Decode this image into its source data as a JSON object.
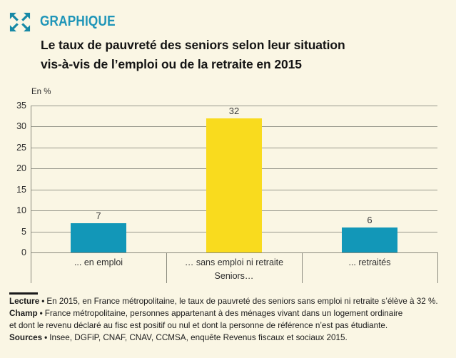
{
  "header": {
    "kicker": "GRAPHIQUE",
    "title_line1": "Le taux de pauvreté des seniors selon leur situation",
    "title_line2": "vis-à-vis de l’emploi ou de la retraite en 2015",
    "icon": "expand-arrows-icon"
  },
  "chart_data": {
    "type": "bar",
    "title": "Le taux de pauvreté des seniors selon leur situation vis-à-vis de l’emploi ou de la retraite en 2015",
    "unit_label": "En %",
    "categories": [
      "... en emploi",
      "… sans emploi ni retraite",
      "... retraités"
    ],
    "values": [
      7,
      32,
      6
    ],
    "bar_colors": [
      "#1297B8",
      "#F9DB1E",
      "#1297B8"
    ],
    "x_axis_group_label": "Seniors…",
    "xlabel": "",
    "ylabel": "En %",
    "ylim": [
      0,
      35
    ],
    "yticks": [
      0,
      5,
      10,
      15,
      20,
      25,
      30,
      35
    ],
    "grid": true,
    "legend_position": "none"
  },
  "footer": {
    "separator": "•",
    "notes": [
      {
        "label": "Lecture",
        "text": "En 2015, en France métropolitaine, le taux de pauvreté des seniors sans emploi ni retraite s’élève à 32 %."
      },
      {
        "label": "Champ",
        "text": "France métropolitaine, personnes appartenant à des ménages vivant dans un logement ordinaire\net dont le revenu déclaré au fisc est positif ou nul et dont la personne de référence n’est pas étudiante."
      },
      {
        "label": "Sources",
        "text": "Insee, DGFiP, CNAF, CNAV, CCMSA, enquête Revenus fiscaux et sociaux 2015."
      }
    ]
  },
  "colors": {
    "background": "#FAF6E4",
    "accent_teal": "#1E95B8",
    "icon_teal": "#1789A6",
    "bar_blue": "#1297B8",
    "bar_yellow": "#F9DB1E",
    "gridline": "#98988C",
    "text_dark": "#141414"
  }
}
